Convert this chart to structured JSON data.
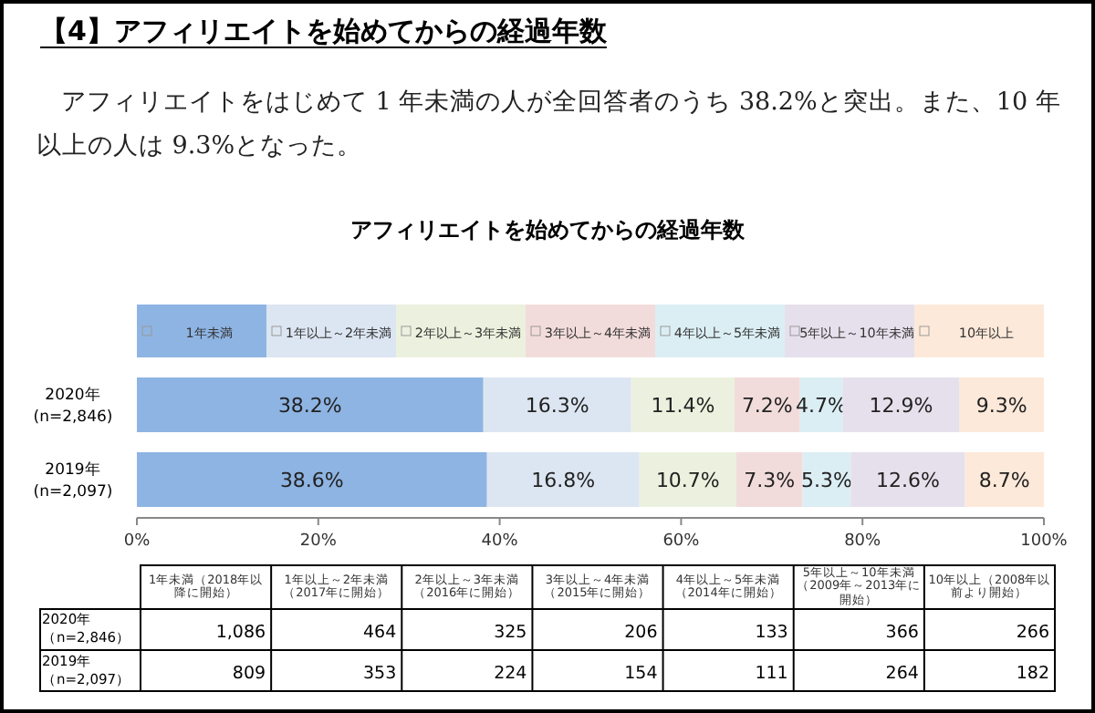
{
  "chart_data": [
    {
      "type": "other",
      "title": "【4】アフィリエイトを始めてからの経過年数",
      "annotations": [
        "アフィリエイトをはじめて 1 年未満の人が全回答者のうち 38.2%と突出。また、10 年以上の人は 9.3%となった。"
      ]
    },
    {
      "type": "bar",
      "orientation": "horizontal",
      "stacked": true,
      "title": "アフィリエイトを始めてからの経過年数",
      "categories": [
        "2020年\n(n=2,846)",
        "2019年\n(n=2,097)"
      ],
      "legend": "top",
      "xlim": [
        0,
        100
      ],
      "xticks": [
        {
          "value": 0,
          "label": "0%"
        },
        {
          "value": 20,
          "label": "20%"
        },
        {
          "value": 40,
          "label": "40%"
        },
        {
          "value": 60,
          "label": "60%"
        },
        {
          "value": 80,
          "label": "80%"
        },
        {
          "value": 100,
          "label": "100%"
        }
      ],
      "series": [
        {
          "name": "1年未満",
          "color": "#8eb4e3",
          "values": [
            38.2,
            38.6
          ],
          "value_labels": [
            "38.2%",
            "38.6%"
          ]
        },
        {
          "name": "1年以上～2年未満",
          "color": "#dce6f2",
          "values": [
            16.3,
            16.8
          ],
          "value_labels": [
            "16.3%",
            "16.8%"
          ]
        },
        {
          "name": "2年以上～3年未満",
          "color": "#ebf1de",
          "values": [
            11.4,
            10.7
          ],
          "value_labels": [
            "11.4%",
            "10.7%"
          ]
        },
        {
          "name": "3年以上～4年未満",
          "color": "#f2dcdb",
          "values": [
            7.2,
            7.3
          ],
          "value_labels": [
            "7.2%",
            "7.3%"
          ]
        },
        {
          "name": "4年以上～5年未満",
          "color": "#dbeef4",
          "values": [
            4.7,
            5.3
          ],
          "value_labels": [
            "4.7%",
            "5.3%"
          ]
        },
        {
          "name": "5年以上～10年未満",
          "color": "#e6e0ec",
          "values": [
            12.9,
            12.6
          ],
          "value_labels": [
            "12.9%",
            "12.6%"
          ]
        },
        {
          "name": "10年以上",
          "color": "#fde9d9",
          "values": [
            9.3,
            8.7
          ],
          "value_labels": [
            "9.3%",
            "8.7%"
          ]
        }
      ]
    },
    {
      "type": "heatmap",
      "categories": [
        "1年未満（2018年以降に開始）",
        "1年以上～2年未満（2017年に開始）",
        "2年以上～3年未満（2016年に開始）",
        "3年以上～4年未満（2015年に開始）",
        "4年以上～5年未満（2014年に開始）",
        "5年以上～10年未満（2009年～2013年に開始）",
        "10年以上（2008年以前より開始）"
      ],
      "y_categories": [
        "2020年（n=2,846）",
        "2019年（n=2,097）"
      ],
      "cells": [
        [
          1086,
          464,
          325,
          206,
          133,
          366,
          266
        ],
        [
          809,
          353,
          224,
          154,
          111,
          264,
          182
        ]
      ],
      "cell_labels": [
        [
          "1,086",
          "464",
          "325",
          "206",
          "133",
          "366",
          "266"
        ],
        [
          "809",
          "353",
          "224",
          "154",
          "111",
          "264",
          "182"
        ]
      ]
    }
  ]
}
